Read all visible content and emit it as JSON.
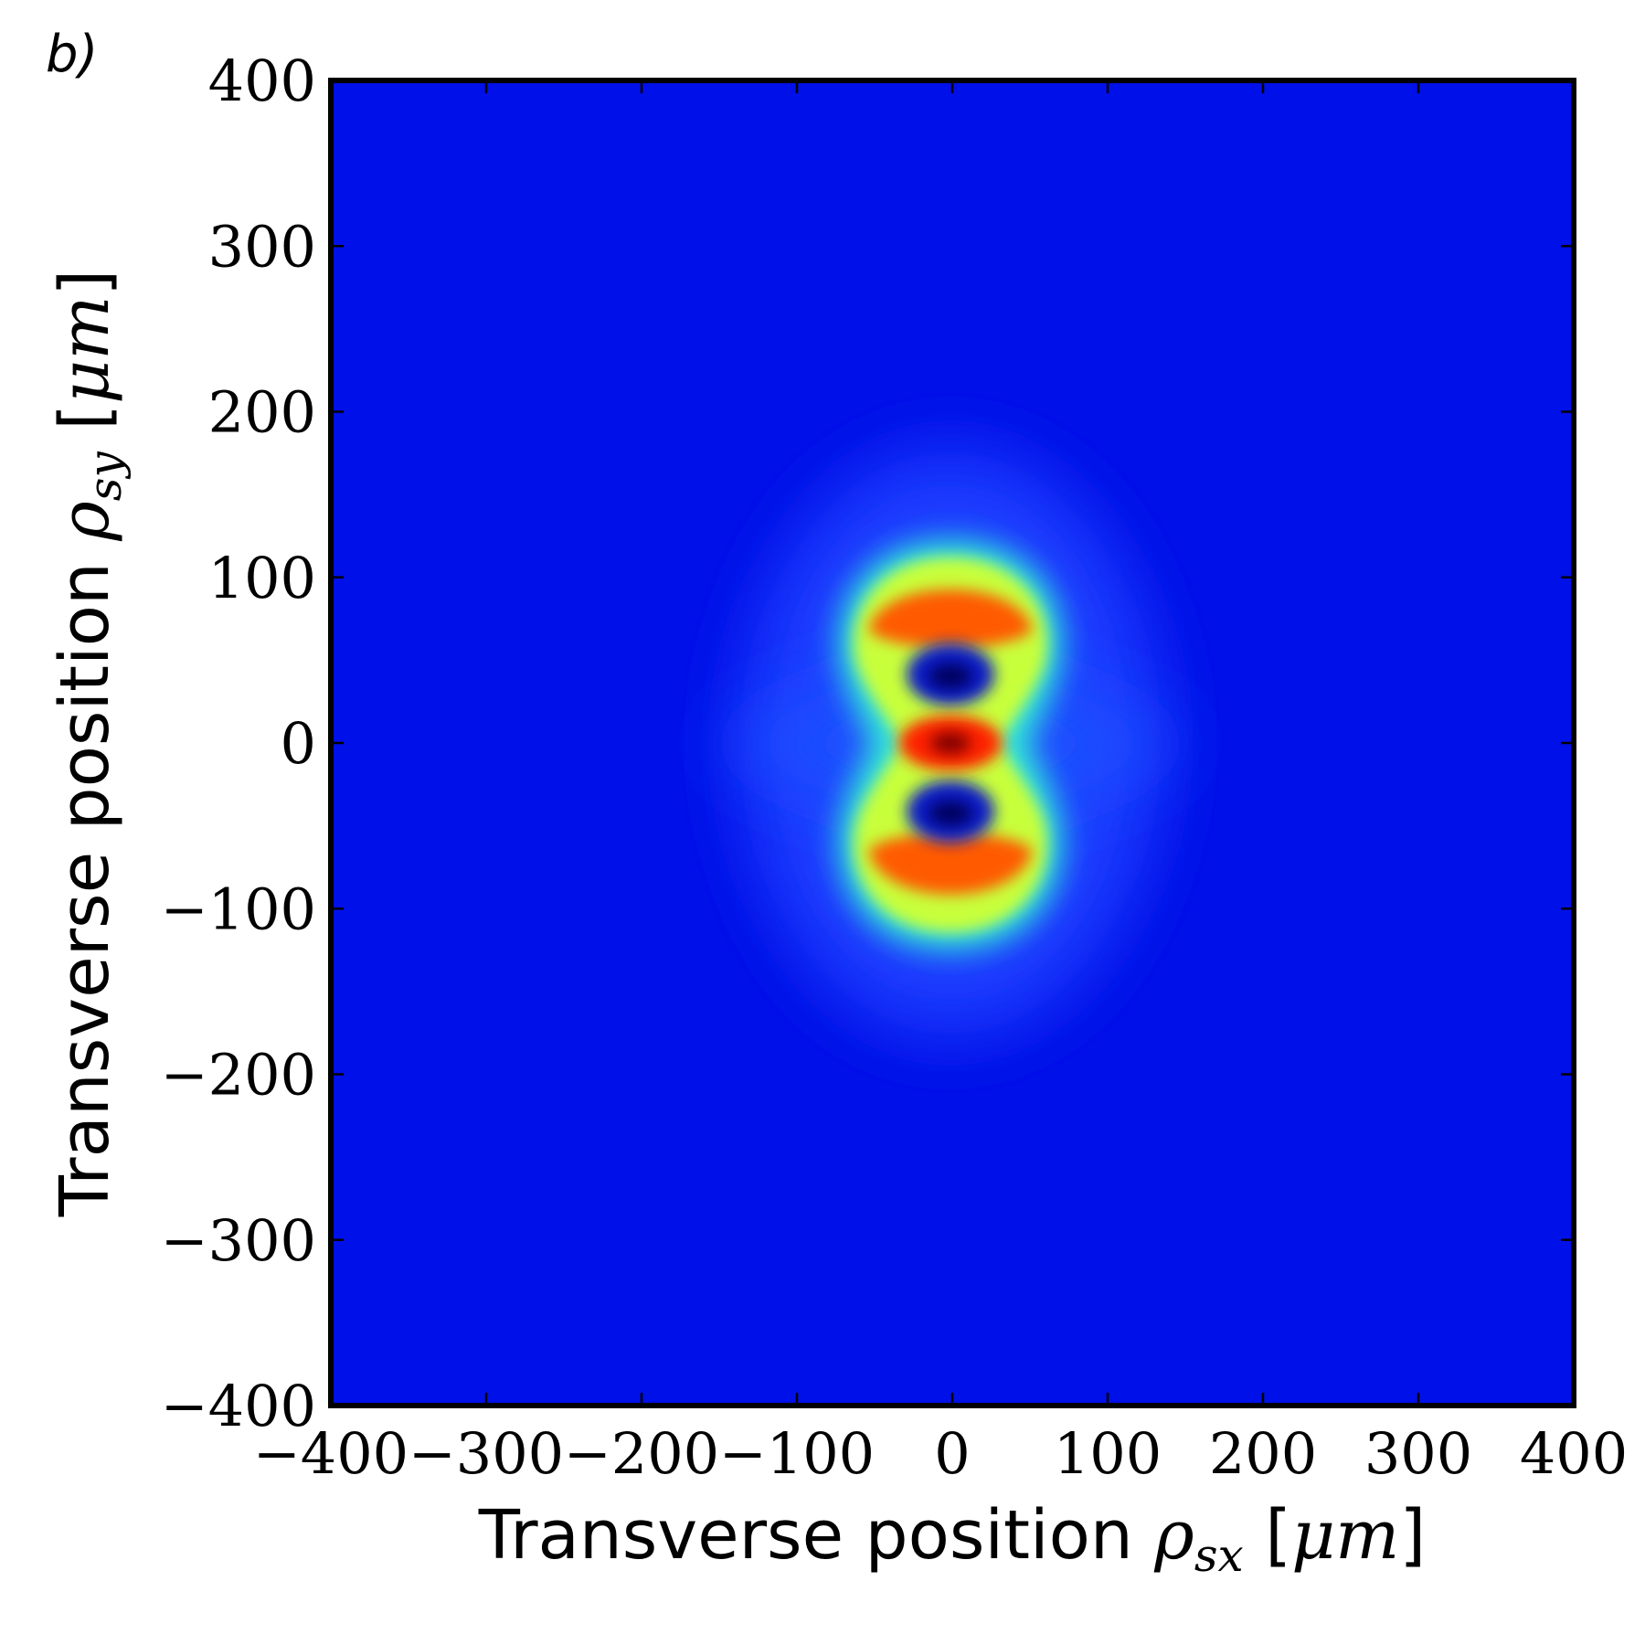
{
  "panel_label": "b)",
  "chart_data": {
    "type": "heatmap",
    "title": "",
    "xlabel": {
      "text": "Transverse position ",
      "symbol": "ρ",
      "subscript": "sx",
      "unit_open": " [",
      "unit_mu": "μ",
      "unit_m": "m",
      "unit_close": "]"
    },
    "ylabel": {
      "text": "Transverse position ",
      "symbol": "ρ",
      "subscript": "sy",
      "unit_open": " [",
      "unit_mu": "μ",
      "unit_m": "m",
      "unit_close": "]"
    },
    "xlim": [
      -400,
      400
    ],
    "ylim": [
      -400,
      400
    ],
    "xticks": [
      -400,
      -300,
      -200,
      -100,
      0,
      100,
      200,
      300,
      400
    ],
    "yticks": [
      -400,
      -300,
      -200,
      -100,
      0,
      100,
      200,
      300,
      400
    ],
    "xtick_labels": [
      "−400",
      "−300",
      "−200",
      "−100",
      "0",
      "100",
      "200",
      "300",
      "400"
    ],
    "ytick_labels": [
      "−400",
      "−300",
      "−200",
      "−100",
      "0",
      "100",
      "200",
      "300",
      "400"
    ],
    "colormap": "jet",
    "grid": false,
    "features": [
      {
        "kind": "maximum",
        "x": 0,
        "y": 0,
        "level": 1.0
      },
      {
        "kind": "minimum",
        "x": 0,
        "y": 40,
        "level": 0.0
      },
      {
        "kind": "minimum",
        "x": 0,
        "y": -40,
        "level": 0.0
      },
      {
        "kind": "maximum",
        "x": 0,
        "y": 80,
        "level": 0.85
      },
      {
        "kind": "maximum",
        "x": 0,
        "y": -85,
        "level": 0.85
      }
    ]
  }
}
